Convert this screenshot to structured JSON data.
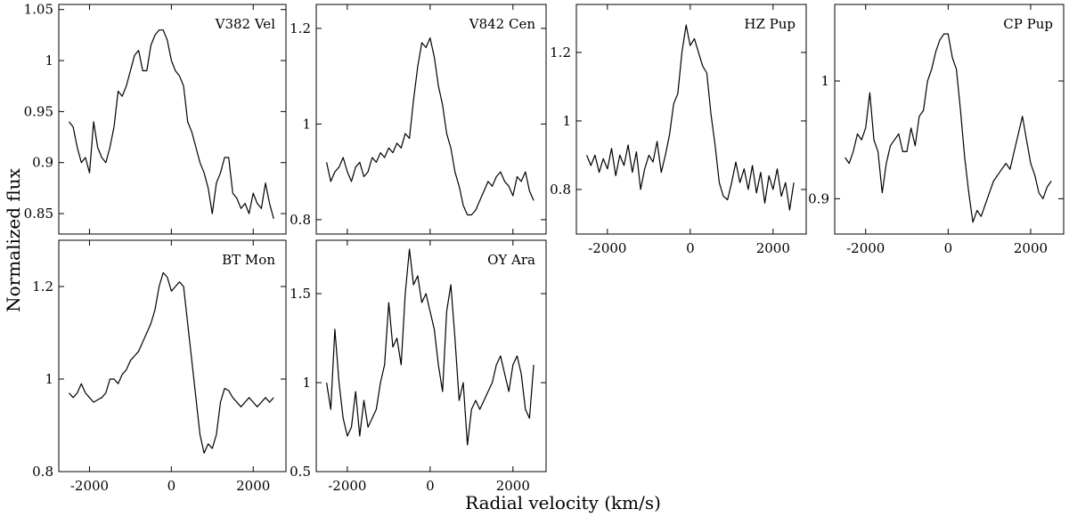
{
  "figure": {
    "xlabel": "Radial velocity (km/s)",
    "ylabel": "Normalized flux"
  },
  "chart_data": [
    {
      "type": "line",
      "title": "V382 Vel",
      "xlim": [
        -2750,
        2800
      ],
      "ylim": [
        0.83,
        1.055
      ],
      "x_ticks": [],
      "y_ticks": [
        0.85,
        0.9,
        0.95,
        1,
        1.05
      ],
      "y_tick_labels": [
        "0.85",
        "0.9",
        "0.95",
        "1",
        "1.05"
      ],
      "series": [
        {
          "x": [
            -2500,
            -2400,
            -2300,
            -2200,
            -2100,
            -2000,
            -1900,
            -1800,
            -1700,
            -1600,
            -1500,
            -1400,
            -1300,
            -1200,
            -1100,
            -1000,
            -900,
            -800,
            -700,
            -600,
            -500,
            -400,
            -300,
            -200,
            -100,
            0,
            100,
            200,
            300,
            400,
            500,
            600,
            700,
            800,
            900,
            1000,
            1100,
            1200,
            1300,
            1400,
            1500,
            1600,
            1700,
            1800,
            1900,
            2000,
            2100,
            2200,
            2300,
            2400,
            2500
          ],
          "y": [
            0.94,
            0.935,
            0.915,
            0.9,
            0.905,
            0.89,
            0.94,
            0.915,
            0.905,
            0.9,
            0.915,
            0.935,
            0.97,
            0.965,
            0.975,
            0.99,
            1.005,
            1.01,
            0.99,
            0.99,
            1.015,
            1.025,
            1.03,
            1.03,
            1.02,
            1.0,
            0.99,
            0.985,
            0.975,
            0.94,
            0.93,
            0.915,
            0.9,
            0.89,
            0.875,
            0.85,
            0.88,
            0.89,
            0.905,
            0.905,
            0.87,
            0.865,
            0.855,
            0.86,
            0.85,
            0.87,
            0.86,
            0.855,
            0.88,
            0.86,
            0.845
          ]
        }
      ]
    },
    {
      "type": "line",
      "title": "V842 Cen",
      "xlim": [
        -2750,
        2800
      ],
      "ylim": [
        0.77,
        1.25
      ],
      "x_ticks": [],
      "y_ticks": [
        0.8,
        1,
        1.2
      ],
      "y_tick_labels": [
        "0.8",
        "1",
        "1.2"
      ],
      "series": [
        {
          "x": [
            -2500,
            -2400,
            -2300,
            -2200,
            -2100,
            -2000,
            -1900,
            -1800,
            -1700,
            -1600,
            -1500,
            -1400,
            -1300,
            -1200,
            -1100,
            -1000,
            -900,
            -800,
            -700,
            -600,
            -500,
            -400,
            -300,
            -200,
            -100,
            0,
            100,
            200,
            300,
            400,
            500,
            600,
            700,
            800,
            900,
            1000,
            1100,
            1200,
            1300,
            1400,
            1500,
            1600,
            1700,
            1800,
            1900,
            2000,
            2100,
            2200,
            2300,
            2400,
            2500
          ],
          "y": [
            0.92,
            0.88,
            0.9,
            0.91,
            0.93,
            0.9,
            0.88,
            0.91,
            0.92,
            0.89,
            0.9,
            0.93,
            0.92,
            0.94,
            0.93,
            0.95,
            0.94,
            0.96,
            0.95,
            0.98,
            0.97,
            1.05,
            1.12,
            1.17,
            1.16,
            1.18,
            1.14,
            1.08,
            1.04,
            0.98,
            0.95,
            0.9,
            0.87,
            0.83,
            0.81,
            0.81,
            0.82,
            0.84,
            0.86,
            0.88,
            0.87,
            0.89,
            0.9,
            0.88,
            0.87,
            0.85,
            0.89,
            0.88,
            0.9,
            0.86,
            0.84
          ]
        }
      ]
    },
    {
      "type": "line",
      "title": "HZ Pup",
      "xlim": [
        -2750,
        2800
      ],
      "ylim": [
        0.67,
        1.34
      ],
      "x_ticks": [
        -2000,
        0,
        2000
      ],
      "x_tick_labels": [
        "-2000",
        "0",
        "2000"
      ],
      "y_ticks": [
        0.8,
        1,
        1.2
      ],
      "y_tick_labels": [
        "0.8",
        "1",
        "1.2"
      ],
      "series": [
        {
          "x": [
            -2500,
            -2400,
            -2300,
            -2200,
            -2100,
            -2000,
            -1900,
            -1800,
            -1700,
            -1600,
            -1500,
            -1400,
            -1300,
            -1200,
            -1100,
            -1000,
            -900,
            -800,
            -700,
            -600,
            -500,
            -400,
            -300,
            -200,
            -100,
            0,
            100,
            200,
            300,
            400,
            500,
            600,
            700,
            800,
            900,
            1000,
            1100,
            1200,
            1300,
            1400,
            1500,
            1600,
            1700,
            1800,
            1900,
            2000,
            2100,
            2200,
            2300,
            2400,
            2500
          ],
          "y": [
            0.9,
            0.87,
            0.9,
            0.85,
            0.89,
            0.86,
            0.92,
            0.84,
            0.9,
            0.87,
            0.93,
            0.85,
            0.91,
            0.8,
            0.86,
            0.9,
            0.88,
            0.94,
            0.85,
            0.9,
            0.96,
            1.05,
            1.08,
            1.2,
            1.28,
            1.22,
            1.24,
            1.2,
            1.16,
            1.14,
            1.02,
            0.93,
            0.82,
            0.78,
            0.77,
            0.82,
            0.88,
            0.82,
            0.86,
            0.8,
            0.87,
            0.79,
            0.85,
            0.76,
            0.84,
            0.8,
            0.86,
            0.78,
            0.82,
            0.74,
            0.82
          ]
        }
      ]
    },
    {
      "type": "line",
      "title": "CP Pup",
      "xlim": [
        -2750,
        2800
      ],
      "ylim": [
        0.87,
        1.065
      ],
      "x_ticks": [
        -2000,
        0,
        2000
      ],
      "x_tick_labels": [
        "-2000",
        "0",
        "2000"
      ],
      "y_ticks": [
        0.9,
        1
      ],
      "y_tick_labels": [
        "0.9",
        "1"
      ],
      "series": [
        {
          "x": [
            -2500,
            -2400,
            -2300,
            -2200,
            -2100,
            -2000,
            -1900,
            -1800,
            -1700,
            -1600,
            -1500,
            -1400,
            -1300,
            -1200,
            -1100,
            -1000,
            -900,
            -800,
            -700,
            -600,
            -500,
            -400,
            -300,
            -200,
            -100,
            0,
            100,
            200,
            300,
            400,
            500,
            600,
            700,
            800,
            900,
            1000,
            1100,
            1200,
            1300,
            1400,
            1500,
            1600,
            1700,
            1800,
            1900,
            2000,
            2100,
            2200,
            2300,
            2400,
            2500
          ],
          "y": [
            0.935,
            0.93,
            0.94,
            0.955,
            0.95,
            0.96,
            0.99,
            0.95,
            0.94,
            0.905,
            0.93,
            0.945,
            0.95,
            0.955,
            0.94,
            0.94,
            0.96,
            0.945,
            0.97,
            0.975,
            1.0,
            1.01,
            1.025,
            1.035,
            1.04,
            1.04,
            1.02,
            1.01,
            0.975,
            0.935,
            0.905,
            0.88,
            0.89,
            0.885,
            0.895,
            0.905,
            0.915,
            0.92,
            0.925,
            0.93,
            0.925,
            0.94,
            0.955,
            0.97,
            0.95,
            0.93,
            0.92,
            0.905,
            0.9,
            0.91,
            0.915
          ]
        }
      ]
    },
    {
      "type": "line",
      "title": "BT Mon",
      "xlim": [
        -2750,
        2800
      ],
      "ylim": [
        0.8,
        1.3
      ],
      "x_ticks": [
        -2000,
        0,
        2000
      ],
      "x_tick_labels": [
        "-2000",
        "0",
        "2000"
      ],
      "y_ticks": [
        0.8,
        1,
        1.2
      ],
      "y_tick_labels": [
        "0.8",
        "1",
        "1.2"
      ],
      "series": [
        {
          "x": [
            -2500,
            -2400,
            -2300,
            -2200,
            -2100,
            -2000,
            -1900,
            -1800,
            -1700,
            -1600,
            -1500,
            -1400,
            -1300,
            -1200,
            -1100,
            -1000,
            -900,
            -800,
            -700,
            -600,
            -500,
            -400,
            -300,
            -200,
            -100,
            0,
            100,
            200,
            300,
            400,
            500,
            600,
            700,
            800,
            900,
            1000,
            1100,
            1200,
            1300,
            1400,
            1500,
            1600,
            1700,
            1800,
            1900,
            2000,
            2100,
            2200,
            2300,
            2400,
            2500
          ],
          "y": [
            0.97,
            0.96,
            0.97,
            0.99,
            0.97,
            0.96,
            0.95,
            0.955,
            0.96,
            0.97,
            1.0,
            1.0,
            0.99,
            1.01,
            1.02,
            1.04,
            1.05,
            1.06,
            1.08,
            1.1,
            1.12,
            1.15,
            1.2,
            1.23,
            1.22,
            1.19,
            1.2,
            1.21,
            1.2,
            1.12,
            1.04,
            0.96,
            0.88,
            0.84,
            0.86,
            0.85,
            0.88,
            0.95,
            0.98,
            0.975,
            0.96,
            0.95,
            0.94,
            0.95,
            0.96,
            0.95,
            0.94,
            0.95,
            0.96,
            0.95,
            0.96
          ]
        }
      ]
    },
    {
      "type": "line",
      "title": "OY Ara",
      "xlim": [
        -2750,
        2800
      ],
      "ylim": [
        0.5,
        1.8
      ],
      "x_ticks": [
        -2000,
        0,
        2000
      ],
      "x_tick_labels": [
        "-2000",
        "0",
        "2000"
      ],
      "y_ticks": [
        0.5,
        1,
        1.5
      ],
      "y_tick_labels": [
        "0.5",
        "1",
        "1.5"
      ],
      "series": [
        {
          "x": [
            -2500,
            -2400,
            -2300,
            -2200,
            -2100,
            -2000,
            -1900,
            -1800,
            -1700,
            -1600,
            -1500,
            -1400,
            -1300,
            -1200,
            -1100,
            -1000,
            -900,
            -800,
            -700,
            -600,
            -500,
            -400,
            -300,
            -200,
            -100,
            0,
            100,
            200,
            300,
            400,
            500,
            600,
            700,
            800,
            900,
            1000,
            1100,
            1200,
            1300,
            1400,
            1500,
            1600,
            1700,
            1800,
            1900,
            2000,
            2100,
            2200,
            2300,
            2400,
            2500
          ],
          "y": [
            1.0,
            0.85,
            1.3,
            1.0,
            0.8,
            0.7,
            0.75,
            0.95,
            0.7,
            0.9,
            0.75,
            0.8,
            0.85,
            1.0,
            1.1,
            1.45,
            1.2,
            1.25,
            1.1,
            1.5,
            1.75,
            1.55,
            1.6,
            1.45,
            1.5,
            1.4,
            1.3,
            1.1,
            0.95,
            1.4,
            1.55,
            1.25,
            0.9,
            1.0,
            0.65,
            0.85,
            0.9,
            0.85,
            0.9,
            0.95,
            1.0,
            1.1,
            1.15,
            1.05,
            0.95,
            1.1,
            1.15,
            1.05,
            0.85,
            0.8,
            1.1
          ]
        }
      ]
    }
  ]
}
